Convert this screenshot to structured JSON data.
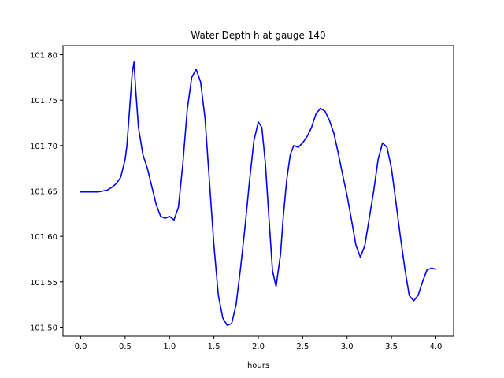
{
  "chart_data": {
    "type": "line",
    "title": "Water Depth h at gauge 140",
    "xlabel": "hours",
    "ylabel": "",
    "xlim": [
      -0.2,
      4.2
    ],
    "ylim": [
      101.49,
      101.81
    ],
    "xticks": [
      0.0,
      0.5,
      1.0,
      1.5,
      2.0,
      2.5,
      3.0,
      3.5,
      4.0
    ],
    "xtick_labels": [
      "0.0",
      "0.5",
      "1.0",
      "1.5",
      "2.0",
      "2.5",
      "3.0",
      "3.5",
      "4.0"
    ],
    "yticks": [
      101.5,
      101.55,
      101.6,
      101.65,
      101.7,
      101.75,
      101.8
    ],
    "ytick_labels": [
      "101.50",
      "101.55",
      "101.60",
      "101.65",
      "101.70",
      "101.75",
      "101.80"
    ],
    "grid": false,
    "legend": "none",
    "series": [
      {
        "color": "#0000ff",
        "x": [
          0.0,
          0.1,
          0.2,
          0.3,
          0.35,
          0.4,
          0.45,
          0.5,
          0.52,
          0.55,
          0.58,
          0.6,
          0.62,
          0.65,
          0.7,
          0.75,
          0.8,
          0.85,
          0.9,
          0.95,
          1.0,
          1.05,
          1.1,
          1.15,
          1.2,
          1.25,
          1.3,
          1.35,
          1.4,
          1.45,
          1.5,
          1.55,
          1.6,
          1.65,
          1.7,
          1.75,
          1.8,
          1.85,
          1.9,
          1.95,
          2.0,
          2.04,
          2.08,
          2.12,
          2.16,
          2.2,
          2.25,
          2.28,
          2.32,
          2.36,
          2.4,
          2.45,
          2.5,
          2.55,
          2.6,
          2.65,
          2.7,
          2.75,
          2.8,
          2.85,
          2.9,
          2.95,
          3.0,
          3.05,
          3.1,
          3.15,
          3.2,
          3.25,
          3.3,
          3.35,
          3.4,
          3.45,
          3.5,
          3.55,
          3.6,
          3.65,
          3.7,
          3.75,
          3.8,
          3.85,
          3.9,
          3.95,
          4.0
        ],
        "y": [
          101.649,
          101.649,
          101.649,
          101.651,
          101.654,
          101.658,
          101.665,
          101.685,
          101.7,
          101.74,
          101.78,
          101.792,
          101.76,
          101.72,
          101.69,
          101.675,
          101.655,
          101.635,
          101.622,
          101.62,
          101.622,
          101.618,
          101.632,
          101.68,
          101.74,
          101.775,
          101.784,
          101.77,
          101.73,
          101.66,
          101.59,
          101.535,
          101.51,
          101.502,
          101.504,
          101.525,
          101.565,
          101.61,
          101.66,
          101.705,
          101.726,
          101.72,
          101.68,
          101.62,
          101.562,
          101.545,
          101.58,
          101.62,
          101.662,
          101.69,
          101.7,
          101.698,
          101.703,
          101.71,
          101.72,
          101.735,
          101.741,
          101.738,
          101.728,
          101.714,
          101.692,
          101.668,
          101.645,
          101.618,
          101.59,
          101.577,
          101.59,
          101.62,
          101.65,
          101.685,
          101.703,
          101.698,
          101.675,
          101.638,
          101.6,
          101.565,
          101.535,
          101.529,
          101.535,
          101.55,
          101.563,
          101.565,
          101.564
        ]
      }
    ]
  }
}
